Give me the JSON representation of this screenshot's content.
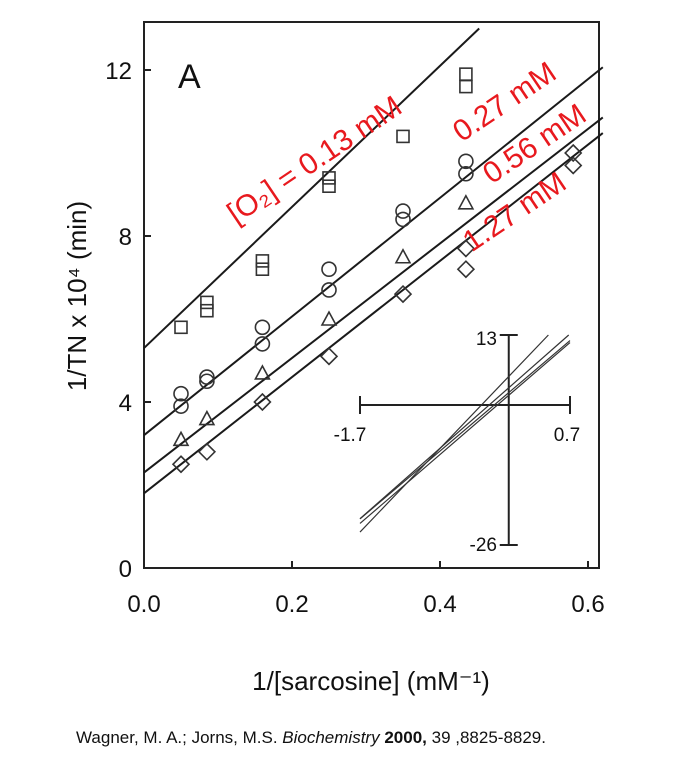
{
  "chart_data": {
    "type": "scatter",
    "panel_label": "A",
    "xlabel": "1/[sarcosine] (mM⁻¹)",
    "ylabel": "1/TN x 10⁴ (min)",
    "xlim": [
      0,
      0.62
    ],
    "ylim": [
      0,
      13
    ],
    "x_ticks": [
      "0.0",
      "0.2",
      "0.4",
      "0.6"
    ],
    "y_ticks": [
      "0",
      "4",
      "8",
      "12"
    ],
    "grid": false,
    "series_label_color": "#e8191e",
    "series": [
      {
        "name": "[O₂] = 0.13 mM",
        "marker": "square",
        "fit": {
          "slope": 17.0,
          "intercept": 5.3
        },
        "points": [
          [
            0.05,
            5.8
          ],
          [
            0.085,
            6.2
          ],
          [
            0.085,
            6.4
          ],
          [
            0.16,
            7.2
          ],
          [
            0.16,
            7.4
          ],
          [
            0.25,
            9.2
          ],
          [
            0.25,
            9.4
          ],
          [
            0.35,
            10.4
          ],
          [
            0.435,
            11.6
          ],
          [
            0.435,
            11.9
          ]
        ]
      },
      {
        "name": "0.27 mM",
        "marker": "circle",
        "fit": {
          "slope": 14.3,
          "intercept": 3.2
        },
        "points": [
          [
            0.05,
            3.9
          ],
          [
            0.05,
            4.2
          ],
          [
            0.085,
            4.5
          ],
          [
            0.085,
            4.6
          ],
          [
            0.16,
            5.4
          ],
          [
            0.16,
            5.8
          ],
          [
            0.25,
            6.7
          ],
          [
            0.25,
            7.2
          ],
          [
            0.35,
            8.4
          ],
          [
            0.35,
            8.6
          ],
          [
            0.435,
            9.5
          ],
          [
            0.435,
            9.8
          ]
        ]
      },
      {
        "name": "0.56 mM",
        "marker": "triangle",
        "fit": {
          "slope": 13.8,
          "intercept": 2.3
        },
        "points": [
          [
            0.05,
            3.1
          ],
          [
            0.085,
            3.6
          ],
          [
            0.16,
            4.7
          ],
          [
            0.25,
            6.0
          ],
          [
            0.35,
            7.5
          ],
          [
            0.435,
            8.8
          ]
        ]
      },
      {
        "name": "1.27 mM",
        "marker": "diamond",
        "fit": {
          "slope": 14.0,
          "intercept": 1.8
        },
        "points": [
          [
            0.05,
            2.5
          ],
          [
            0.085,
            2.8
          ],
          [
            0.16,
            4.0
          ],
          [
            0.25,
            5.1
          ],
          [
            0.35,
            6.6
          ],
          [
            0.435,
            7.2
          ],
          [
            0.435,
            7.7
          ],
          [
            0.58,
            9.7
          ],
          [
            0.58,
            10.0
          ]
        ]
      }
    ],
    "inset": {
      "type": "line",
      "xlim": [
        -1.7,
        0.7
      ],
      "ylim": [
        -26,
        13
      ],
      "x_tick_labels": [
        "-1.7",
        "0.7"
      ],
      "y_tick_labels": [
        "13",
        "-26"
      ],
      "lines": [
        {
          "slope": 17.0,
          "intercept": 5.3
        },
        {
          "slope": 14.3,
          "intercept": 3.2
        },
        {
          "slope": 13.8,
          "intercept": 2.3
        },
        {
          "slope": 14.0,
          "intercept": 1.8
        }
      ]
    }
  },
  "citation": {
    "authors": "Wagner, M. A.; Jorns, M.S.",
    "journal": "Biochemistry",
    "year": "2000,",
    "rest": "39 ,8825-8829."
  }
}
